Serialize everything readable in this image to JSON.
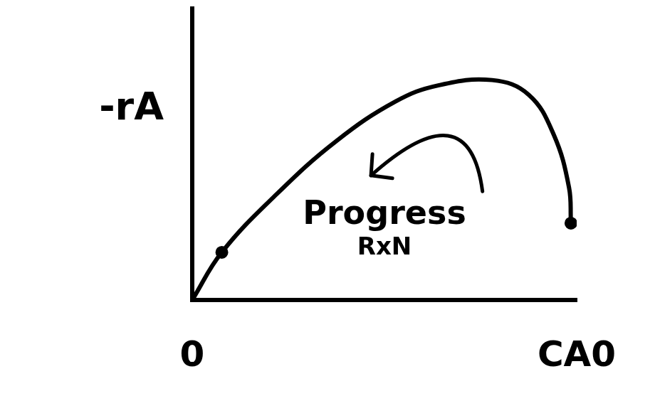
{
  "chart_data": {
    "type": "line",
    "y_label": "-rA",
    "annotation": "Progress RxN",
    "x": [
      0,
      0.077,
      0.22,
      0.375,
      0.53,
      0.64,
      0.78,
      0.875,
      0.94,
      0.98,
      0.985
    ],
    "values": [
      0,
      0.18,
      0.4,
      0.6,
      0.75,
      0.81,
      0.83,
      0.775,
      0.625,
      0.425,
      0.29
    ],
    "color": "#000000",
    "marker": "circle",
    "xlim": [
      0,
      1
    ],
    "xticks": [
      {
        "value": 0,
        "label": "0"
      },
      {
        "value": 1,
        "label": "CA0"
      }
    ],
    "ylim": [
      0,
      1.1
    ],
    "yticks": [],
    "grid": false,
    "tick_labels": "x"
  }
}
